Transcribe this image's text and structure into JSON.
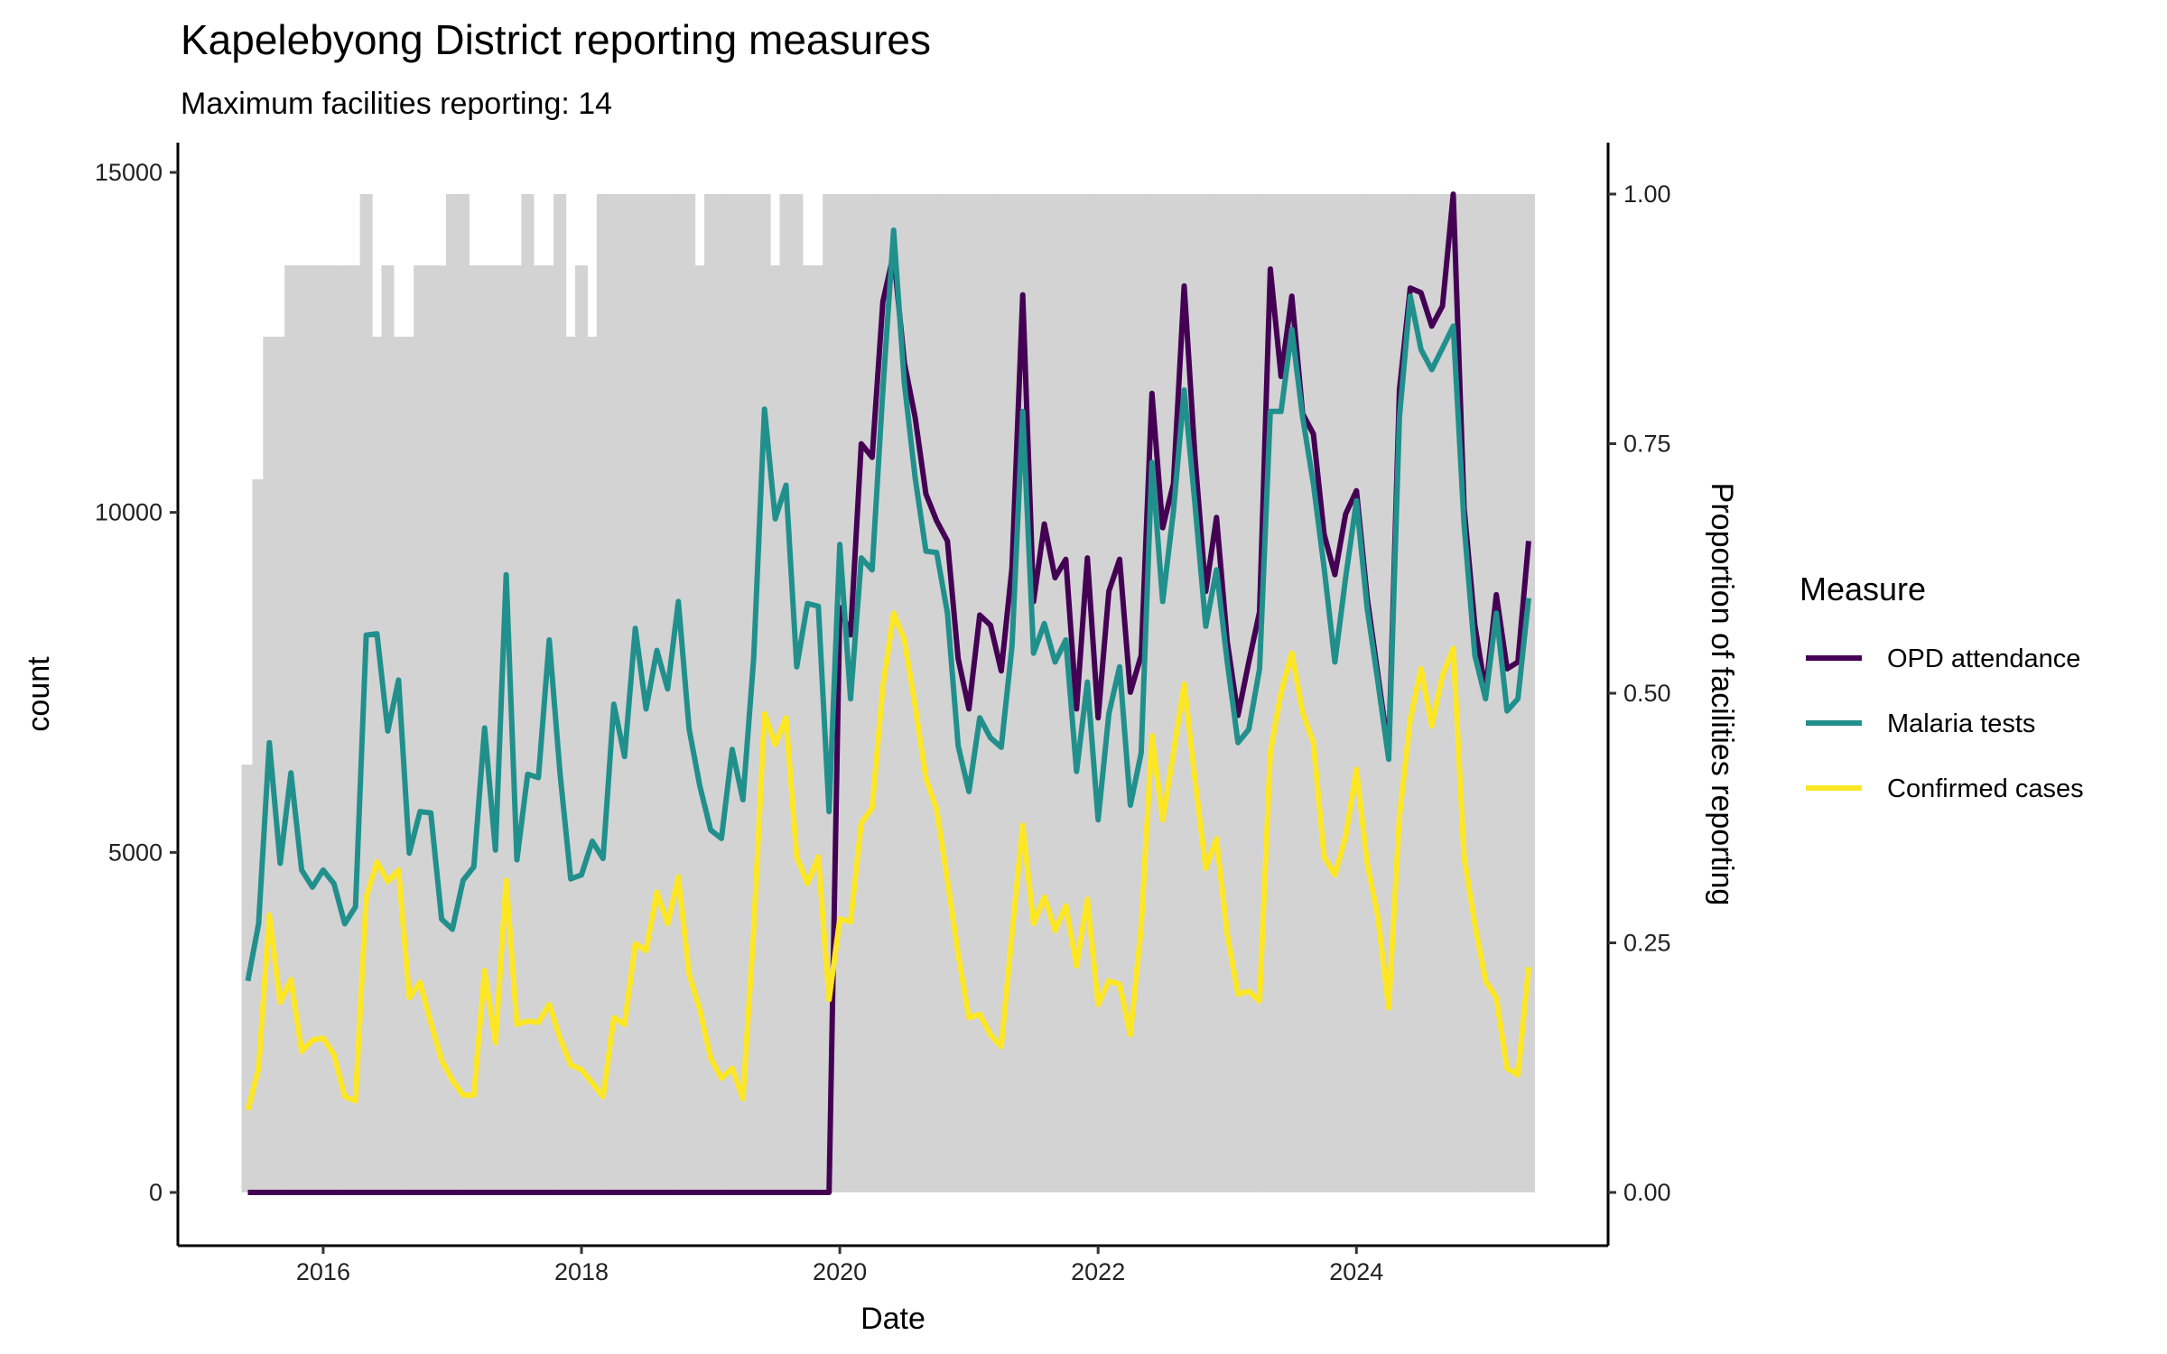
{
  "chart_data": {
    "type": "line",
    "title": "Kapelebyong District reporting measures",
    "subtitle": "Maximum facilities reporting: 14",
    "xlabel": "Date",
    "ylabel": "count",
    "y2label": "Proportion of facilities reporting",
    "x_start": "2015-06",
    "x_frequency": "monthly",
    "x_count": 120,
    "x_ticks": [
      "2016",
      "2018",
      "2020",
      "2022",
      "2024"
    ],
    "ylim": [
      0,
      15000
    ],
    "y_ticks": [
      "0",
      "5000",
      "10000",
      "15000"
    ],
    "y2lim": [
      0,
      1
    ],
    "y2_ticks": [
      "0.00",
      "0.25",
      "0.50",
      "0.75",
      "1.00"
    ],
    "grid": false,
    "legend": {
      "title": "Measure",
      "placement": "right"
    },
    "bars": {
      "name": "Proportion of facilities reporting",
      "color": "#d3d3d3",
      "max_facilities": 14,
      "facilities_reporting": [
        6,
        10,
        12,
        12,
        13,
        13,
        13,
        13,
        13,
        13,
        13,
        14,
        12,
        13,
        12,
        12,
        13,
        13,
        13,
        14,
        14,
        13,
        13,
        13,
        13,
        13,
        14,
        13,
        13,
        14,
        12,
        13,
        12,
        14,
        14,
        14,
        14,
        14,
        14,
        14,
        14,
        14,
        13,
        14,
        14,
        14,
        14,
        14,
        14,
        13,
        14,
        14,
        13,
        13,
        14,
        14,
        14,
        14,
        14,
        14,
        14,
        14,
        14,
        14,
        14,
        14,
        14,
        14,
        14,
        14,
        14,
        14,
        14,
        14,
        14,
        14,
        14,
        14,
        14,
        14,
        14,
        14,
        14,
        14,
        14,
        14,
        14,
        14,
        14,
        14,
        14,
        14,
        14,
        14,
        14,
        14,
        14,
        14,
        14,
        14,
        14,
        14,
        14,
        14,
        14,
        14,
        14,
        14,
        14,
        14,
        14,
        14,
        14,
        14,
        14,
        14,
        14,
        14,
        14,
        14
      ]
    },
    "series": [
      {
        "name": "OPD attendance",
        "color": "#440154",
        "values": [
          0,
          0,
          0,
          0,
          0,
          0,
          0,
          0,
          0,
          0,
          0,
          0,
          0,
          0,
          0,
          0,
          0,
          0,
          0,
          0,
          0,
          0,
          0,
          0,
          0,
          0,
          0,
          0,
          0,
          0,
          0,
          0,
          0,
          0,
          0,
          0,
          0,
          0,
          0,
          0,
          0,
          0,
          0,
          0,
          0,
          0,
          0,
          0,
          0,
          0,
          0,
          0,
          0,
          0,
          0,
          8600,
          8200,
          11010,
          10810,
          13100,
          13800,
          12200,
          11400,
          10270,
          9875,
          9580,
          7850,
          7110,
          8490,
          8340,
          7670,
          9185,
          13200,
          8690,
          9830,
          9040,
          9310,
          7110,
          9330,
          6980,
          8840,
          9310,
          7355,
          7900,
          11750,
          9775,
          10420,
          13330,
          10810,
          8840,
          9925,
          8100,
          7015,
          7800,
          8540,
          13580,
          12000,
          13180,
          11450,
          11155,
          9680,
          9085,
          9975,
          10320,
          8740,
          7605,
          6470,
          11800,
          13300,
          13230,
          12740,
          13035,
          14680,
          10070,
          8345,
          7360,
          8790,
          7700,
          7800,
          9580
        ]
      },
      {
        "name": "Malaria tests",
        "color": "#21908C",
        "values": [
          3110,
          3950,
          6615,
          4840,
          6170,
          4740,
          4490,
          4740,
          4540,
          3950,
          4200,
          8195,
          8215,
          6785,
          7535,
          4990,
          5600,
          5580,
          4020,
          3870,
          4590,
          4790,
          6830,
          5035,
          9085,
          4890,
          6150,
          6100,
          8125,
          6170,
          4610,
          4670,
          5165,
          4910,
          7180,
          6410,
          8295,
          7110,
          7970,
          7405,
          8690,
          6815,
          5975,
          5330,
          5205,
          6515,
          5775,
          7850,
          11520,
          9905,
          10400,
          7730,
          8660,
          8620,
          5600,
          9530,
          7260,
          9330,
          9155,
          11800,
          14150,
          11900,
          10515,
          9430,
          9410,
          8520,
          6565,
          5895,
          6980,
          6685,
          6545,
          8030,
          11485,
          7930,
          8365,
          7800,
          8125,
          6190,
          7505,
          5480,
          7040,
          7730,
          5695,
          6465,
          10735,
          8690,
          10020,
          11800,
          10120,
          8325,
          9155,
          7800,
          6615,
          6810,
          7700,
          11485,
          11485,
          12690,
          11400,
          10420,
          9185,
          7800,
          9040,
          10170,
          8590,
          7505,
          6370,
          11400,
          13180,
          12395,
          12100,
          12415,
          12740,
          9825,
          7900,
          7260,
          8520,
          7080,
          7260,
          8740
        ]
      },
      {
        "name": "Confirmed cases",
        "color": "#FDE725",
        "values": [
          1215,
          1825,
          4080,
          2795,
          3130,
          2075,
          2240,
          2270,
          2025,
          1410,
          1350,
          4345,
          4860,
          4570,
          4740,
          2865,
          3090,
          2500,
          1945,
          1650,
          1430,
          1430,
          3260,
          2200,
          4590,
          2470,
          2520,
          2500,
          2765,
          2270,
          1875,
          1805,
          1610,
          1410,
          2570,
          2470,
          3655,
          3555,
          4415,
          3950,
          4640,
          3210,
          2690,
          1975,
          1680,
          1825,
          1380,
          3850,
          7040,
          6585,
          6980,
          4935,
          4540,
          4935,
          2835,
          4020,
          3980,
          5430,
          5655,
          7440,
          8520,
          8125,
          7160,
          6090,
          5630,
          4590,
          3505,
          2570,
          2620,
          2320,
          2145,
          3800,
          5400,
          3950,
          4345,
          3850,
          4215,
          3330,
          4310,
          2765,
          3110,
          3060,
          2320,
          3900,
          6715,
          5480,
          6465,
          7475,
          6070,
          4765,
          5200,
          3800,
          2915,
          2960,
          2815,
          6470,
          7355,
          7930,
          7060,
          6615,
          4935,
          4670,
          5235,
          6220,
          4840,
          4050,
          2715,
          5530,
          6960,
          7700,
          6860,
          7605,
          8000,
          4935,
          3950,
          3110,
          2865,
          1825,
          1730,
          3310
        ]
      }
    ]
  }
}
